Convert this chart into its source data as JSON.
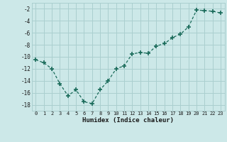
{
  "x": [
    0,
    1,
    2,
    3,
    4,
    5,
    6,
    7,
    8,
    9,
    10,
    11,
    12,
    13,
    14,
    15,
    16,
    17,
    18,
    19,
    20,
    21,
    22,
    23
  ],
  "y": [
    -10.5,
    -11.0,
    -12.0,
    -14.5,
    -16.5,
    -15.5,
    -17.5,
    -17.8,
    -15.5,
    -14.0,
    -12.0,
    -11.5,
    -9.5,
    -9.3,
    -9.4,
    -8.2,
    -7.8,
    -6.8,
    -6.2,
    -5.0,
    -2.2,
    -2.3,
    -2.4,
    -2.7
  ],
  "xlabel": "Humidex (Indice chaleur)",
  "ylim": [
    -19,
    -1
  ],
  "xlim": [
    -0.5,
    23.5
  ],
  "yticks": [
    -18,
    -16,
    -14,
    -12,
    -10,
    -8,
    -6,
    -4,
    -2
  ],
  "xticks": [
    0,
    1,
    2,
    3,
    4,
    5,
    6,
    7,
    8,
    9,
    10,
    11,
    12,
    13,
    14,
    15,
    16,
    17,
    18,
    19,
    20,
    21,
    22,
    23
  ],
  "xtick_labels": [
    "0",
    "1",
    "2",
    "3",
    "4",
    "5",
    "6",
    "7",
    "8",
    "9",
    "10",
    "11",
    "12",
    "13",
    "14",
    "15",
    "16",
    "17",
    "18",
    "19",
    "20",
    "21",
    "22",
    "23"
  ],
  "bg_color": "#cce8e8",
  "line_color": "#1a6b5a",
  "grid_color": "#aacfcf",
  "font_color": "#1a1a1a"
}
